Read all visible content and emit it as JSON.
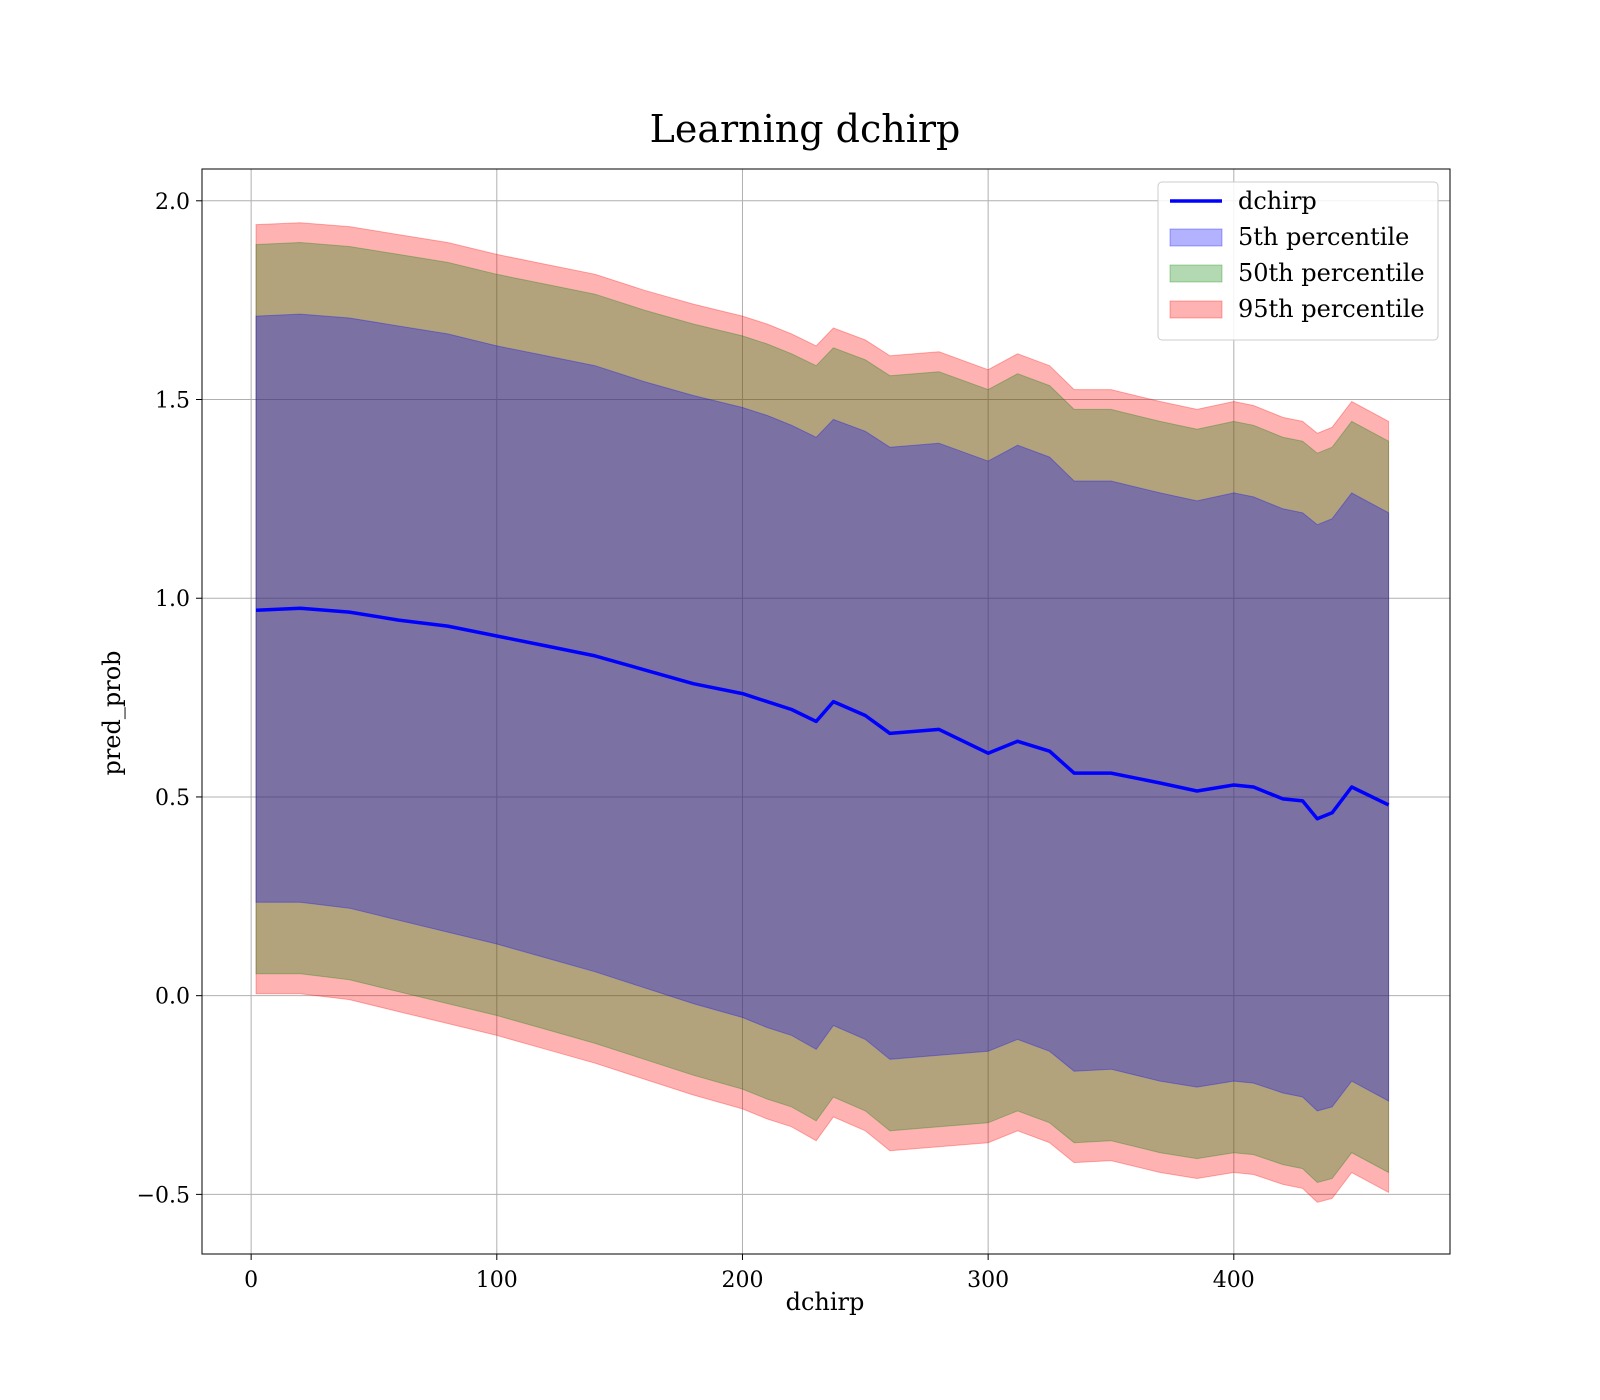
{
  "chart_data": {
    "type": "line",
    "title": "Learning dchirp",
    "xlabel": "dchirp",
    "ylabel": "pred_prob",
    "xlim": [
      -20,
      488
    ],
    "ylim": [
      -0.65,
      2.08
    ],
    "xticks": [
      0,
      100,
      200,
      300,
      400
    ],
    "xtick_labels": [
      "0",
      "100",
      "200",
      "300",
      "400"
    ],
    "yticks": [
      -0.5,
      0.0,
      0.5,
      1.0,
      1.5,
      2.0
    ],
    "ytick_labels": [
      "−0.5",
      "0.0",
      "0.5",
      "1.0",
      "1.5",
      "2.0"
    ],
    "grid": true,
    "legend_position": "top-right",
    "x": [
      2,
      20,
      40,
      60,
      80,
      100,
      120,
      140,
      160,
      180,
      200,
      210,
      220,
      230,
      237,
      250,
      260,
      280,
      300,
      312,
      325,
      335,
      350,
      370,
      385,
      400,
      408,
      420,
      428,
      434,
      440,
      448,
      463
    ],
    "series": [
      {
        "name": "dchirp",
        "kind": "line",
        "color": "#0000ff",
        "values": [
          0.97,
          0.975,
          0.965,
          0.945,
          0.93,
          0.905,
          0.88,
          0.855,
          0.82,
          0.785,
          0.76,
          0.74,
          0.72,
          0.69,
          0.74,
          0.705,
          0.66,
          0.67,
          0.61,
          0.64,
          0.615,
          0.56,
          0.56,
          0.535,
          0.515,
          0.53,
          0.525,
          0.495,
          0.49,
          0.445,
          0.46,
          0.525,
          0.48
        ]
      },
      {
        "name": "5th percentile",
        "kind": "band",
        "color": "#0000ff",
        "lower": [
          0.235,
          0.235,
          0.22,
          0.19,
          0.16,
          0.13,
          0.095,
          0.06,
          0.02,
          -0.02,
          -0.055,
          -0.08,
          -0.1,
          -0.135,
          -0.075,
          -0.11,
          -0.16,
          -0.15,
          -0.14,
          -0.11,
          -0.14,
          -0.19,
          -0.185,
          -0.215,
          -0.23,
          -0.215,
          -0.22,
          -0.245,
          -0.255,
          -0.29,
          -0.28,
          -0.215,
          -0.265
        ],
        "upper": [
          1.71,
          1.715,
          1.705,
          1.685,
          1.665,
          1.635,
          1.61,
          1.585,
          1.545,
          1.51,
          1.48,
          1.46,
          1.435,
          1.405,
          1.45,
          1.42,
          1.38,
          1.39,
          1.345,
          1.385,
          1.355,
          1.295,
          1.295,
          1.265,
          1.245,
          1.265,
          1.255,
          1.225,
          1.215,
          1.185,
          1.2,
          1.265,
          1.215
        ]
      },
      {
        "name": "50th percentile",
        "kind": "band",
        "color": "#008000",
        "lower": [
          0.055,
          0.055,
          0.04,
          0.01,
          -0.02,
          -0.05,
          -0.085,
          -0.12,
          -0.16,
          -0.2,
          -0.235,
          -0.26,
          -0.28,
          -0.315,
          -0.255,
          -0.29,
          -0.34,
          -0.33,
          -0.32,
          -0.29,
          -0.32,
          -0.37,
          -0.365,
          -0.395,
          -0.41,
          -0.395,
          -0.4,
          -0.425,
          -0.435,
          -0.47,
          -0.46,
          -0.395,
          -0.445
        ],
        "upper": [
          1.89,
          1.895,
          1.885,
          1.865,
          1.845,
          1.815,
          1.79,
          1.765,
          1.725,
          1.69,
          1.66,
          1.64,
          1.615,
          1.585,
          1.63,
          1.6,
          1.56,
          1.57,
          1.525,
          1.565,
          1.535,
          1.475,
          1.475,
          1.445,
          1.425,
          1.445,
          1.435,
          1.405,
          1.395,
          1.365,
          1.38,
          1.445,
          1.395
        ]
      },
      {
        "name": "95th percentile",
        "kind": "band",
        "color": "#ff0000",
        "lower": [
          0.005,
          0.005,
          -0.01,
          -0.04,
          -0.07,
          -0.1,
          -0.135,
          -0.17,
          -0.21,
          -0.25,
          -0.285,
          -0.31,
          -0.33,
          -0.365,
          -0.305,
          -0.34,
          -0.39,
          -0.38,
          -0.37,
          -0.34,
          -0.37,
          -0.42,
          -0.415,
          -0.445,
          -0.46,
          -0.445,
          -0.45,
          -0.475,
          -0.485,
          -0.52,
          -0.51,
          -0.445,
          -0.495
        ],
        "upper": [
          1.94,
          1.945,
          1.935,
          1.915,
          1.895,
          1.865,
          1.84,
          1.815,
          1.775,
          1.74,
          1.71,
          1.69,
          1.665,
          1.635,
          1.68,
          1.65,
          1.61,
          1.62,
          1.575,
          1.615,
          1.585,
          1.525,
          1.525,
          1.495,
          1.475,
          1.495,
          1.485,
          1.455,
          1.445,
          1.415,
          1.43,
          1.495,
          1.445
        ]
      }
    ]
  }
}
